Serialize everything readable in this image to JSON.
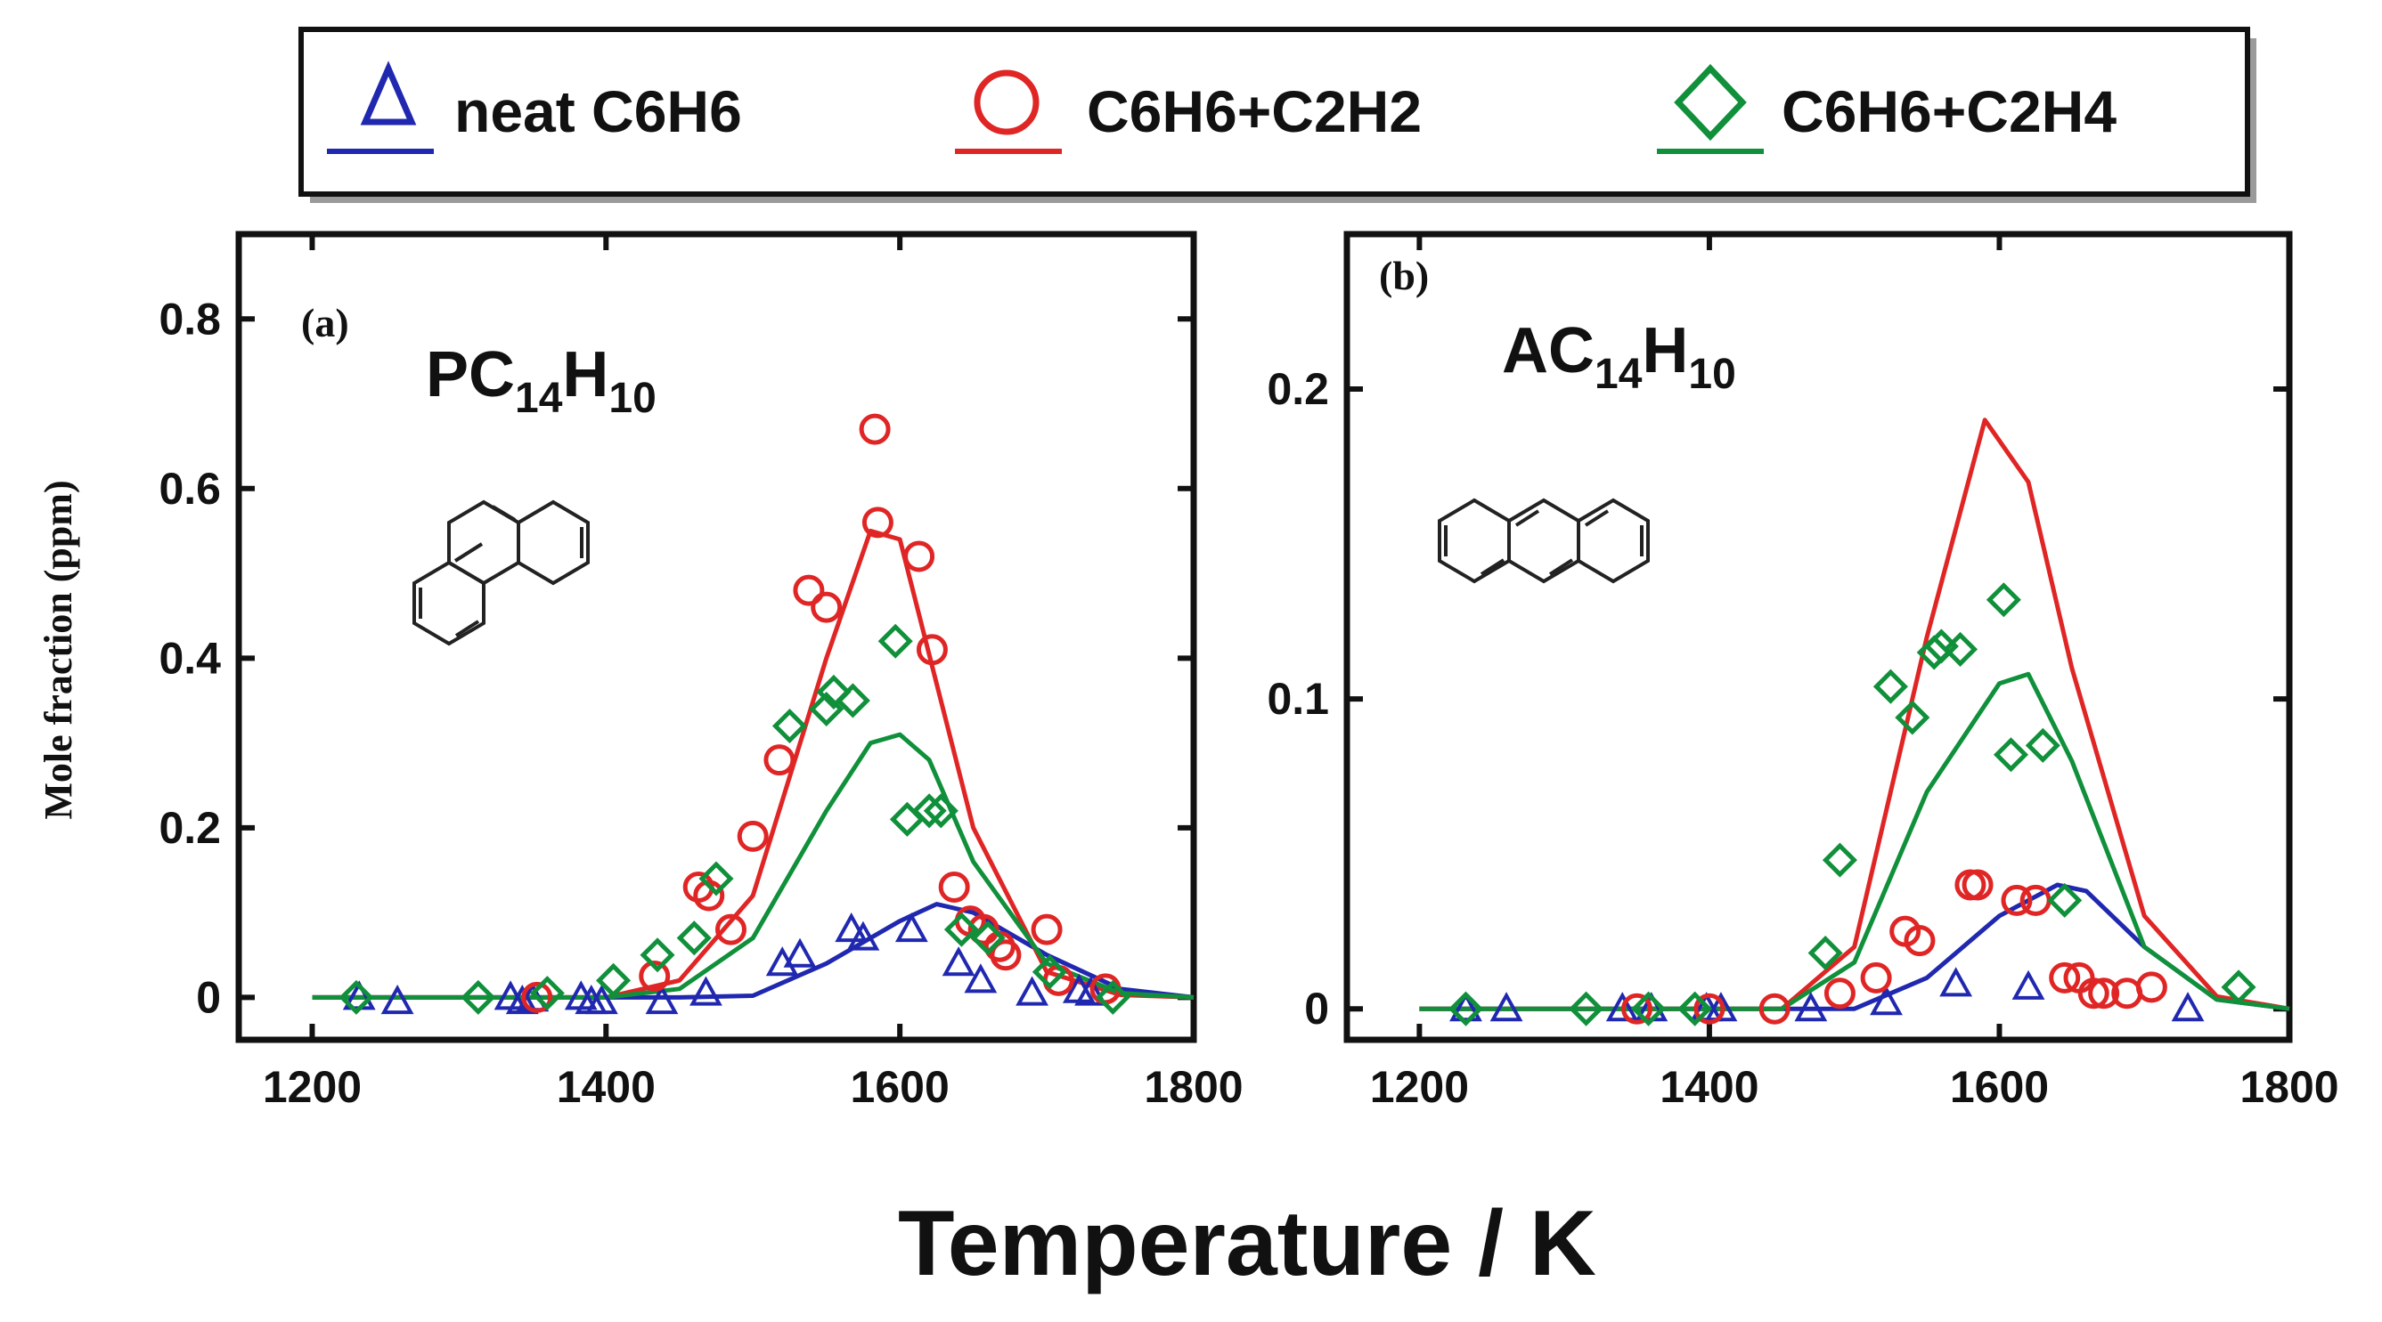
{
  "legend": {
    "entries": [
      {
        "label": "neat C6H6",
        "color": "#2028b0",
        "marker": "triangle"
      },
      {
        "label": "C6H6+C2H2",
        "color": "#e02525",
        "marker": "circle"
      },
      {
        "label": "C6H6+C2H4",
        "color": "#10903a",
        "marker": "diamond"
      }
    ]
  },
  "xlabel": "Temperature / K",
  "ylabel": "Mole fraction (ppm)",
  "chart_data": [
    {
      "type": "line+scatter",
      "panel_label": "(a)",
      "title": "PC",
      "title_subscript_1": "14",
      "title_mid": "H",
      "title_subscript_2": "10",
      "molecule_icon": "phenanthrene-structure",
      "xlabel": "Temperature / K",
      "ylabel": "Mole fraction (ppm)",
      "xlim": [
        1150,
        1800
      ],
      "ylim": [
        -0.05,
        0.9
      ],
      "xticks": [
        1200,
        1400,
        1600,
        1800
      ],
      "yticks": [
        0,
        0.2,
        0.4,
        0.6,
        0.8
      ],
      "xtick_labels": [
        "1200",
        "1400",
        "1600",
        "1800"
      ],
      "ytick_labels": [
        "0",
        "0.2",
        "0.4",
        "0.6",
        "0.8"
      ],
      "series": [
        {
          "name": "neat C6H6",
          "color": "#2028b0",
          "marker": "triangle",
          "line": {
            "x": [
              1200,
              1450,
              1500,
              1550,
              1600,
              1625,
              1650,
              1700,
              1750,
              1800
            ],
            "y": [
              0,
              0,
              0.002,
              0.04,
              0.09,
              0.11,
              0.1,
              0.05,
              0.01,
              0
            ]
          },
          "points": {
            "x": [
              1232,
              1258,
              1335,
              1343,
              1350,
              1383,
              1390,
              1397,
              1438,
              1468,
              1520,
              1532,
              1567,
              1575,
              1608,
              1640,
              1655,
              1690,
              1722,
              1730
            ],
            "y": [
              0,
              -0.005,
              0,
              -0.005,
              -0.002,
              0,
              -0.005,
              -0.005,
              -0.005,
              0.005,
              0.04,
              0.05,
              0.08,
              0.07,
              0.08,
              0.04,
              0.02,
              0.005,
              0.008,
              0.005
            ]
          }
        },
        {
          "name": "C6H6+C2H2",
          "color": "#e02525",
          "marker": "circle",
          "line": {
            "x": [
              1200,
              1400,
              1450,
              1500,
              1550,
              1580,
              1600,
              1650,
              1700,
              1750,
              1800
            ],
            "y": [
              0,
              0,
              0.02,
              0.12,
              0.4,
              0.55,
              0.54,
              0.2,
              0.03,
              0.003,
              0
            ]
          },
          "points": {
            "x": [
              1353,
              1433,
              1463,
              1470,
              1485,
              1500,
              1518,
              1538,
              1550,
              1583,
              1585,
              1613,
              1622,
              1637,
              1648,
              1657,
              1668,
              1672,
              1700,
              1708,
              1740
            ],
            "y": [
              0,
              0.025,
              0.13,
              0.12,
              0.08,
              0.19,
              0.28,
              0.48,
              0.46,
              0.67,
              0.56,
              0.52,
              0.41,
              0.13,
              0.09,
              0.08,
              0.06,
              0.05,
              0.08,
              0.02,
              0.01
            ]
          }
        },
        {
          "name": "C6H6+C2H4",
          "color": "#10903a",
          "marker": "diamond",
          "line": {
            "x": [
              1200,
              1400,
              1450,
              1500,
              1550,
              1580,
              1600,
              1620,
              1650,
              1700,
              1750,
              1800
            ],
            "y": [
              0,
              0,
              0.01,
              0.07,
              0.22,
              0.3,
              0.31,
              0.28,
              0.16,
              0.04,
              0.005,
              0
            ]
          },
          "points": {
            "x": [
              1230,
              1313,
              1360,
              1405,
              1435,
              1460,
              1475,
              1525,
              1550,
              1555,
              1568,
              1597,
              1605,
              1620,
              1628,
              1642,
              1660,
              1702,
              1745
            ],
            "y": [
              0,
              0,
              0.005,
              0.02,
              0.05,
              0.07,
              0.14,
              0.32,
              0.34,
              0.36,
              0.35,
              0.42,
              0.21,
              0.22,
              0.22,
              0.08,
              0.07,
              0.03,
              0
            ]
          }
        }
      ]
    },
    {
      "type": "line+scatter",
      "panel_label": "(b)",
      "title": "AC",
      "title_subscript_1": "14",
      "title_mid": "H",
      "title_subscript_2": "10",
      "molecule_icon": "anthracene-structure",
      "xlabel": "Temperature / K",
      "ylabel": "Mole fraction (ppm)",
      "xlim": [
        1150,
        1800
      ],
      "ylim": [
        -0.01,
        0.25
      ],
      "xticks": [
        1200,
        1400,
        1600,
        1800
      ],
      "yticks": [
        0,
        0.1,
        0.2
      ],
      "xtick_labels": [
        "1200",
        "1400",
        "1600",
        "1800"
      ],
      "ytick_labels": [
        "0",
        "0.1",
        "0.2"
      ],
      "series": [
        {
          "name": "neat C6H6",
          "color": "#2028b0",
          "marker": "triangle",
          "line": {
            "x": [
              1200,
              1450,
              1500,
              1550,
              1600,
              1640,
              1660,
              1700,
              1750,
              1800
            ],
            "y": [
              0,
              0,
              0,
              0.01,
              0.03,
              0.04,
              0.038,
              0.02,
              0.003,
              0
            ]
          },
          "points": {
            "x": [
              1232,
              1260,
              1340,
              1360,
              1398,
              1408,
              1470,
              1522,
              1570,
              1620,
              1730
            ],
            "y": [
              0,
              0,
              0,
              0,
              0,
              0,
              0,
              0.002,
              0.008,
              0.007,
              0
            ]
          }
        },
        {
          "name": "C6H6+C2H2",
          "color": "#e02525",
          "marker": "circle",
          "line": {
            "x": [
              1200,
              1450,
              1500,
              1550,
              1590,
              1620,
              1650,
              1700,
              1750,
              1800
            ],
            "y": [
              0,
              0,
              0.02,
              0.12,
              0.19,
              0.17,
              0.11,
              0.03,
              0.004,
              0
            ]
          },
          "points": {
            "x": [
              1350,
              1400,
              1445,
              1490,
              1515,
              1535,
              1545,
              1580,
              1585,
              1612,
              1625,
              1645,
              1655,
              1665,
              1672,
              1688,
              1705
            ],
            "y": [
              0,
              0,
              0,
              0.005,
              0.01,
              0.025,
              0.022,
              0.04,
              0.04,
              0.035,
              0.035,
              0.01,
              0.01,
              0.005,
              0.005,
              0.005,
              0.007
            ]
          }
        },
        {
          "name": "C6H6+C2H4",
          "color": "#10903a",
          "marker": "diamond",
          "line": {
            "x": [
              1200,
              1450,
              1500,
              1550,
              1600,
              1620,
              1650,
              1700,
              1750,
              1800
            ],
            "y": [
              0,
              0,
              0.015,
              0.07,
              0.105,
              0.108,
              0.08,
              0.02,
              0.003,
              0
            ]
          },
          "points": {
            "x": [
              1232,
              1315,
              1358,
              1390,
              1480,
              1490,
              1525,
              1540,
              1555,
              1560,
              1573,
              1603,
              1608,
              1630,
              1645,
              1765
            ],
            "y": [
              0,
              0,
              0,
              0,
              0.018,
              0.048,
              0.104,
              0.094,
              0.115,
              0.117,
              0.116,
              0.132,
              0.082,
              0.085,
              0.035,
              0.007
            ]
          }
        }
      ]
    }
  ]
}
